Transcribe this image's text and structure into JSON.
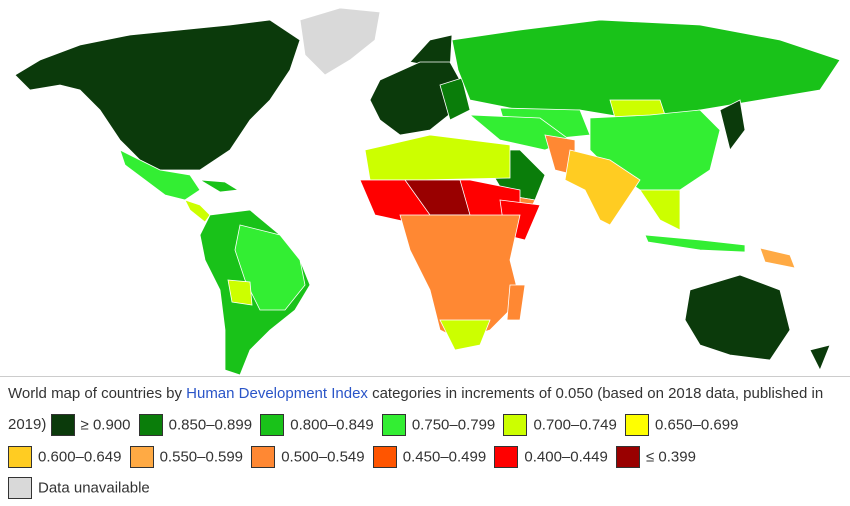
{
  "caption": {
    "prefix": "World map of countries by ",
    "link": "Human Development Index",
    "suffix": " categories in increments of 0.050 (based on 2018 data, published in 2019)"
  },
  "legend": [
    {
      "label": "≥ 0.900",
      "color": "#0b3a0b"
    },
    {
      "label": "0.850–0.899",
      "color": "#0a7d0a"
    },
    {
      "label": "0.800–0.849",
      "color": "#19c219"
    },
    {
      "label": "0.750–0.799",
      "color": "#33ee33"
    },
    {
      "label": "0.700–0.749",
      "color": "#ccff00"
    },
    {
      "label": "0.650–0.699",
      "color": "#ffff00"
    },
    {
      "label": "0.600–0.649",
      "color": "#ffcc22"
    },
    {
      "label": "0.550–0.599",
      "color": "#ffaa44"
    },
    {
      "label": "0.500–0.549",
      "color": "#ff8833"
    },
    {
      "label": "0.450–0.499",
      "color": "#ff5500"
    },
    {
      "label": "0.400–0.449",
      "color": "#ff0000"
    },
    {
      "label": "≤ 0.399",
      "color": "#990000"
    },
    {
      "label": "Data unavailable",
      "color": "#d9d9d9"
    }
  ]
}
